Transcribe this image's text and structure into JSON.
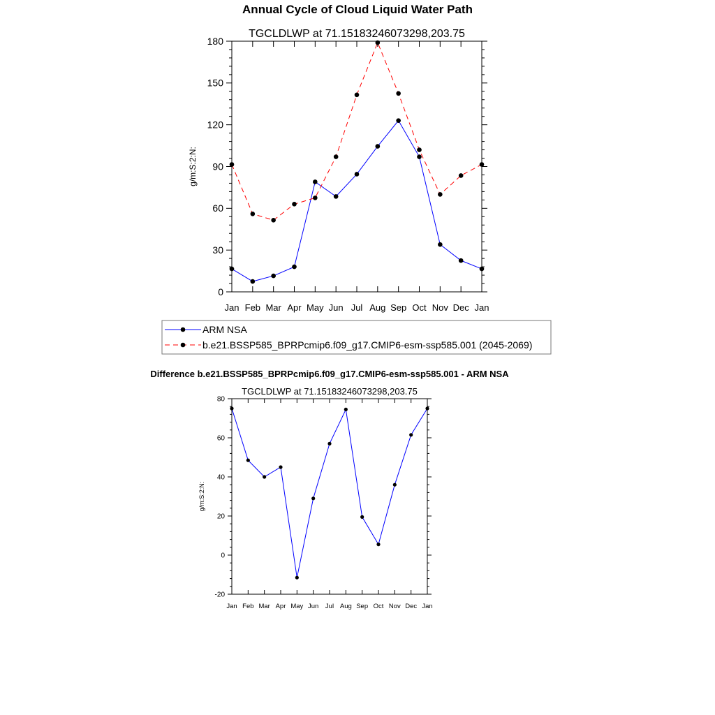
{
  "figure": {
    "main_title": "Annual Cycle of Cloud Liquid Water Path",
    "diff_title": "Difference b.e21.BSSP585_BPRPcmip6.f09_g17.CMIP6-esm-ssp585.001 - ARM NSA"
  },
  "chart_data": [
    {
      "type": "line",
      "title": "TGCLDLWP at 71.15183246073298,203.75",
      "xlabel": "",
      "ylabel": "g/m:S:2:N:",
      "categories": [
        "Jan",
        "Feb",
        "Mar",
        "Apr",
        "May",
        "Jun",
        "Jul",
        "Aug",
        "Sep",
        "Oct",
        "Nov",
        "Dec",
        "Jan"
      ],
      "ylim": [
        0,
        180
      ],
      "yticks": [
        0,
        30,
        60,
        90,
        120,
        150,
        180
      ],
      "yticklabels": [
        "0",
        "30",
        "60",
        "90",
        "120",
        "150",
        "180"
      ],
      "series": [
        {
          "name": "ARM NSA",
          "color": "#0000ff",
          "dash": "solid",
          "values": [
            16.5,
            7.5,
            11.5,
            18,
            79,
            68.5,
            84.5,
            104.5,
            123,
            97,
            34,
            22.5,
            16.5
          ]
        },
        {
          "name": "b.e21.BSSP585_BPRPcmip6.f09_g17.CMIP6-esm-ssp585.001 (2045-2069)",
          "color": "#ff0000",
          "dash": "dashed",
          "values": [
            91.5,
            56,
            51.5,
            63,
            67.5,
            97,
            141.5,
            179,
            142.5,
            102,
            70,
            83.5,
            91.5
          ]
        }
      ],
      "legend": "bottom"
    },
    {
      "type": "line",
      "title": "TGCLDLWP at 71.15183246073298,203.75",
      "xlabel": "",
      "ylabel": "g/m:S:2:N:",
      "categories": [
        "Jan",
        "Feb",
        "Mar",
        "Apr",
        "May",
        "Jun",
        "Jul",
        "Aug",
        "Sep",
        "Oct",
        "Nov",
        "Dec",
        "Jan"
      ],
      "ylim": [
        -20,
        80
      ],
      "yticks": [
        -20,
        0,
        20,
        40,
        60,
        80
      ],
      "yticklabels": [
        "-20",
        "0",
        "20",
        "40",
        "60",
        "80"
      ],
      "series": [
        {
          "name": "Difference",
          "color": "#0000ff",
          "dash": "solid",
          "values": [
            75,
            48.5,
            40,
            45,
            -11.5,
            29,
            57,
            74.5,
            19.5,
            5.5,
            36,
            61.5,
            75
          ]
        }
      ]
    }
  ]
}
